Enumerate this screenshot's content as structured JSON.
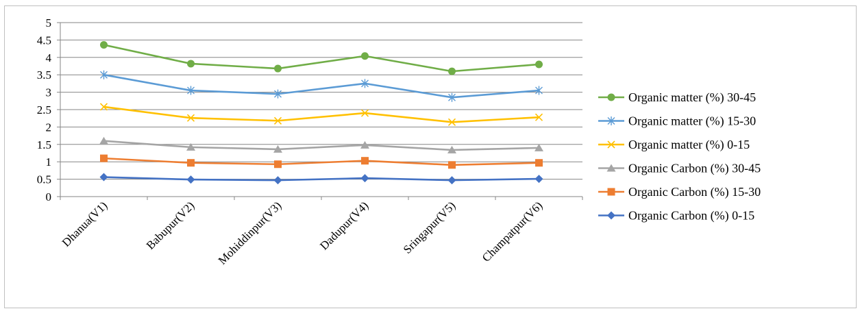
{
  "chart_data": {
    "type": "line",
    "categories": [
      "Dhanua(V1)",
      "Babupur(V2)",
      "Mohiddinpur(V3)",
      "Dadupur(V4)",
      "Sringapur(V5)",
      "Champatpur(V6)"
    ],
    "ylim": [
      0,
      5
    ],
    "yticks": [
      "0",
      "0.5",
      "1",
      "1.5",
      "2",
      "2.5",
      "3",
      "3.5",
      "4",
      "4.5",
      "5"
    ],
    "grid": true,
    "legend_position": "right",
    "series": [
      {
        "name": "Organic Carbon (%) 0-15",
        "color": "#4472c4",
        "marker": "diamond",
        "values": [
          0.56,
          0.49,
          0.47,
          0.53,
          0.47,
          0.51
        ]
      },
      {
        "name": "Organic Carbon (%) 15-30",
        "color": "#ed7d31",
        "marker": "square",
        "values": [
          1.1,
          0.97,
          0.93,
          1.03,
          0.91,
          0.97
        ]
      },
      {
        "name": "Organic Carbon (%) 30-45",
        "color": "#a5a5a5",
        "marker": "triangle",
        "values": [
          1.6,
          1.42,
          1.36,
          1.48,
          1.34,
          1.4
        ]
      },
      {
        "name": "Organic matter (%) 0-15",
        "color": "#ffc000",
        "marker": "x",
        "values": [
          2.58,
          2.26,
          2.18,
          2.4,
          2.14,
          2.28
        ]
      },
      {
        "name": "Organic matter (%) 15-30",
        "color": "#5b9bd5",
        "marker": "star",
        "values": [
          3.5,
          3.05,
          2.95,
          3.25,
          2.85,
          3.05
        ]
      },
      {
        "name": "Organic matter (%) 30-45",
        "color": "#70ad47",
        "marker": "circle",
        "values": [
          4.36,
          3.82,
          3.68,
          4.04,
          3.6,
          3.8
        ]
      }
    ],
    "legend_order": [
      5,
      4,
      3,
      2,
      1,
      0
    ]
  }
}
